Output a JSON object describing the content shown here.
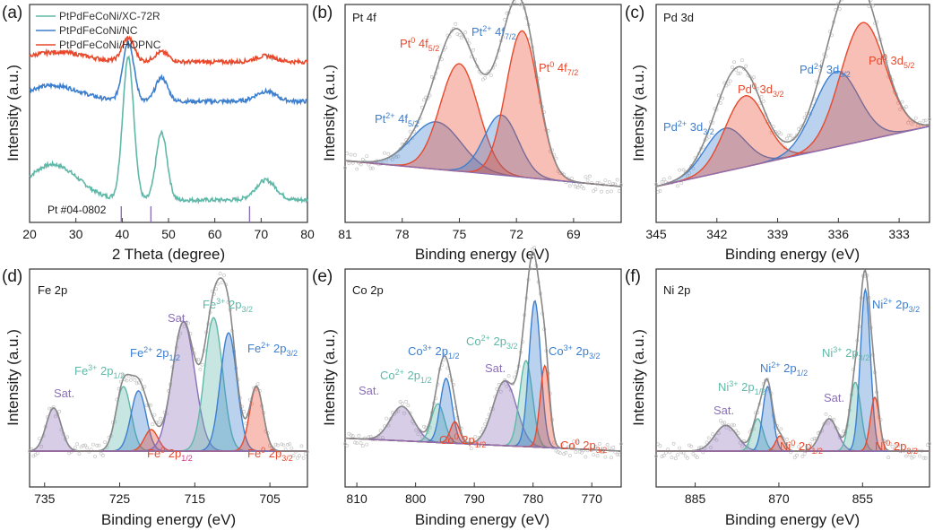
{
  "colors": {
    "red": "#e8492c",
    "blue": "#3d7fcf",
    "teal": "#5fb8a8",
    "purple": "#8b6fb8",
    "gray": "#777777",
    "dark_red": "#d3301a"
  },
  "chart_data": [
    {
      "panel": "(a)",
      "type": "line",
      "title": "",
      "xlabel": "2 Theta (degree)",
      "ylabel": "Intensity (a.u.)",
      "xlim": [
        20,
        80
      ],
      "xticks": [
        "20",
        "30",
        "40",
        "50",
        "60",
        "70",
        "80"
      ],
      "series": [
        {
          "name": "PtPdFeCoNi/XC-72R",
          "color": "#5fb8a8",
          "offset": 0.0,
          "peaks": [
            [
              25,
              0.18,
              5.5
            ],
            [
              41.3,
              0.72,
              1.2
            ],
            [
              48.5,
              0.34,
              1.2
            ],
            [
              71,
              0.1,
              2.2
            ]
          ]
        },
        {
          "name": "PtPdFeCoNi/NC",
          "color": "#3d7fcf",
          "offset": 0.5,
          "peaks": [
            [
              25,
              0.08,
              6
            ],
            [
              41.3,
              0.3,
              1.2
            ],
            [
              48.5,
              0.12,
              1.3
            ],
            [
              71,
              0.05,
              2.2
            ]
          ]
        },
        {
          "name": "PtPdFeCoNi/HOPNC",
          "color": "#e8492c",
          "offset": 0.7,
          "peaks": [
            [
              26,
              0.05,
              6
            ],
            [
              41.3,
              0.12,
              1.3
            ],
            [
              48.5,
              0.05,
              1.5
            ],
            [
              71,
              0.03,
              2.2
            ]
          ]
        }
      ],
      "reference": {
        "label": "Pt #04-0802",
        "positions": [
          39.8,
          46.2,
          67.5
        ]
      }
    },
    {
      "panel": "(b)",
      "type": "line",
      "title": "Pt 4f",
      "xlabel": "Binding energy (eV)",
      "ylabel": "Intensity (a.u.)",
      "xlim": [
        81,
        66.5
      ],
      "xticks": [
        "81",
        "78",
        "75",
        "72",
        "69"
      ],
      "baseline": [
        0.12,
        0.0
      ],
      "peaks": [
        {
          "center": 76.2,
          "height": 0.22,
          "width": 1.3,
          "color": "#3d7fcf",
          "label": "Pt²⁺ 4f₅/₂"
        },
        {
          "center": 75.0,
          "height": 0.5,
          "width": 1.0,
          "color": "#e8492c",
          "label": "Pt⁰ 4f₅/₂"
        },
        {
          "center": 72.8,
          "height": 0.28,
          "width": 0.9,
          "color": "#3d7fcf",
          "label": "Pt²⁺ 4f₇/₂"
        },
        {
          "center": 71.7,
          "height": 0.68,
          "width": 0.85,
          "color": "#e8492c",
          "label": "Pt⁰ 4f₇/₂"
        }
      ],
      "labels": {
        "pt0_52": {
          "main": "Pt",
          "sup": "0",
          "rest": " 4f",
          "sub": "5/2"
        },
        "pt2_72": {
          "main": "Pt",
          "sup": "2+",
          "rest": " 4f",
          "sub": "7/2"
        },
        "pt0_72": {
          "main": "Pt",
          "sup": "0",
          "rest": " 4f",
          "sub": "7/2"
        },
        "pt2_52": {
          "main": "Pt",
          "sup": "2+",
          "rest": " 4f",
          "sub": "5/2"
        }
      }
    },
    {
      "panel": "(c)",
      "type": "line",
      "title": "Pd 3d",
      "xlabel": "Binding energy (eV)",
      "ylabel": "Intensity (a.u.)",
      "xlim": [
        345,
        331.5
      ],
      "xticks": [
        "345",
        "342",
        "339",
        "336",
        "333"
      ],
      "baseline": [
        0.0,
        0.28
      ],
      "peaks": [
        {
          "center": 341.6,
          "height": 0.2,
          "width": 1.0,
          "color": "#3d7fcf",
          "label": "Pd²⁺ 3d₃/₂"
        },
        {
          "center": 340.6,
          "height": 0.33,
          "width": 1.0,
          "color": "#e8492c",
          "label": "Pd⁰ 3d₃/₂"
        },
        {
          "center": 336.1,
          "height": 0.35,
          "width": 1.1,
          "color": "#3d7fcf",
          "label": "Pd²⁺ 3d₅/₂"
        },
        {
          "center": 334.8,
          "height": 0.55,
          "width": 1.1,
          "color": "#e8492c",
          "label": "Pd⁰ 3d₅/₂"
        }
      ],
      "labels": {
        "pd0_32": {
          "main": "Pd",
          "sup": "0",
          "rest": " 3d",
          "sub": "3/2"
        },
        "pd2_52": {
          "main": "Pd",
          "sup": "2+",
          "rest": " 3d",
          "sub": "5/2"
        },
        "pd0_52": {
          "main": "Pd",
          "sup": "0",
          "rest": " 3d",
          "sub": "5/2"
        },
        "pd2_32": {
          "main": "Pd",
          "sup": "2+",
          "rest": " 3d",
          "sub": "3/2"
        }
      }
    },
    {
      "panel": "(d)",
      "type": "line",
      "title": "Fe 2p",
      "xlabel": "Binding energy (eV)",
      "ylabel": "Intensity (a.u.)",
      "xlim": [
        737,
        700
      ],
      "xticks": [
        "735",
        "725",
        "715",
        "705"
      ],
      "baseline": [
        0.0,
        0.0
      ],
      "peaks": [
        {
          "center": 733.8,
          "height": 0.2,
          "width": 1.0,
          "color": "#8b6fb8",
          "label": "Sat."
        },
        {
          "center": 724.5,
          "height": 0.3,
          "width": 1.0,
          "color": "#5fb8a8",
          "label": "Fe³⁺ 2p₁/₂"
        },
        {
          "center": 722.5,
          "height": 0.28,
          "width": 1.0,
          "color": "#3d7fcf",
          "label": "Fe²⁺ 2p₁/₂"
        },
        {
          "center": 720.8,
          "height": 0.1,
          "width": 0.9,
          "color": "#e8492c",
          "label": "Fe⁰ 2p₁/₂"
        },
        {
          "center": 716.5,
          "height": 0.6,
          "width": 1.5,
          "color": "#8b6fb8",
          "label": "Sat."
        },
        {
          "center": 712.5,
          "height": 0.62,
          "width": 1.2,
          "color": "#5fb8a8",
          "label": "Fe³⁺ 2p₃/₂"
        },
        {
          "center": 710.5,
          "height": 0.55,
          "width": 1.1,
          "color": "#3d7fcf",
          "label": "Fe²⁺ 2p₃/₂"
        },
        {
          "center": 706.8,
          "height": 0.3,
          "width": 0.9,
          "color": "#e8492c",
          "label": "Fe⁰ 2p₃/₂"
        }
      ],
      "labels": {
        "sat_left": "Sat.",
        "sat_mid": "Sat.",
        "fe3_12": {
          "main": "Fe",
          "sup": "3+",
          "rest": " 2p",
          "sub": "1/2"
        },
        "fe2_12": {
          "main": "Fe",
          "sup": "2+",
          "rest": " 2p",
          "sub": "1/2"
        },
        "fe3_32": {
          "main": "Fe",
          "sup": "3+",
          "rest": " 2p",
          "sub": "3/2"
        },
        "fe2_32": {
          "main": "Fe",
          "sup": "2+",
          "rest": " 2p",
          "sub": "3/2"
        },
        "fe0_12": {
          "main": "Fe",
          "sup": "0",
          "rest": " 2p",
          "sub": "1/2"
        },
        "fe0_32": {
          "main": "Fe",
          "sup": "0",
          "rest": " 2p",
          "sub": "3/2"
        }
      }
    },
    {
      "panel": "(e)",
      "type": "line",
      "title": "Co 2p",
      "xlabel": "Binding energy (eV)",
      "ylabel": "Intensity (a.u.)",
      "xlim": [
        812,
        765
      ],
      "xticks": [
        "810",
        "800",
        "790",
        "780",
        "770"
      ],
      "baseline": [
        0.06,
        0.0
      ],
      "peaks": [
        {
          "center": 802.3,
          "height": 0.16,
          "width": 2.0,
          "color": "#8b6fb8",
          "label": "Sat."
        },
        {
          "center": 796.2,
          "height": 0.18,
          "width": 1.1,
          "color": "#5fb8a8",
          "label": "Co²⁺ 2p₁/₂"
        },
        {
          "center": 794.8,
          "height": 0.3,
          "width": 1.0,
          "color": "#3d7fcf",
          "label": "Co³⁺ 2p₁/₂"
        },
        {
          "center": 793.3,
          "height": 0.1,
          "width": 0.8,
          "color": "#e8492c",
          "label": "Co⁰ 2p₁/₂"
        },
        {
          "center": 784.8,
          "height": 0.3,
          "width": 2.0,
          "color": "#8b6fb8",
          "label": "Sat."
        },
        {
          "center": 781.2,
          "height": 0.4,
          "width": 1.1,
          "color": "#5fb8a8",
          "label": "Co²⁺ 2p₃/₂"
        },
        {
          "center": 779.7,
          "height": 0.68,
          "width": 1.0,
          "color": "#3d7fcf",
          "label": "Co³⁺ 2p₃/₂"
        },
        {
          "center": 778.0,
          "height": 0.38,
          "width": 0.8,
          "color": "#e8492c",
          "label": "Co⁰ 2p₃/₂"
        }
      ],
      "labels": {
        "sat_left": "Sat.",
        "sat_mid": "Sat.",
        "co3_12": {
          "main": "Co",
          "sup": "3+",
          "rest": " 2p",
          "sub": "1/2"
        },
        "co2_12": {
          "main": "Co",
          "sup": "2+",
          "rest": " 2p",
          "sub": "1/2"
        },
        "co2_32": {
          "main": "Co",
          "sup": "2+",
          "rest": " 2p",
          "sub": "3/2"
        },
        "co3_32": {
          "main": "Co",
          "sup": "3+",
          "rest": " 2p",
          "sub": "3/2"
        },
        "co0_12": {
          "main": "Co",
          "sup": "0",
          "rest": " 2p",
          "sub": "1/2"
        },
        "co0_32": {
          "main": "Co",
          "sup": "0",
          "rest": " 2p",
          "sub": "3/2"
        }
      }
    },
    {
      "panel": "(f)",
      "type": "line",
      "title": "Ni 2p",
      "xlabel": "Binding energy (eV)",
      "ylabel": "Intensity (a.u.)",
      "xlim": [
        892,
        843
      ],
      "xticks": [
        "885",
        "870",
        "855"
      ],
      "baseline": [
        0.0,
        0.0
      ],
      "peaks": [
        {
          "center": 879.5,
          "height": 0.12,
          "width": 2.0,
          "color": "#8b6fb8",
          "label": "Sat."
        },
        {
          "center": 873.8,
          "height": 0.15,
          "width": 1.0,
          "color": "#5fb8a8",
          "label": "Ni³⁺ 2p₁/₂"
        },
        {
          "center": 872.0,
          "height": 0.3,
          "width": 0.9,
          "color": "#3d7fcf",
          "label": "Ni²⁺ 2p₁/₂"
        },
        {
          "center": 869.8,
          "height": 0.07,
          "width": 0.8,
          "color": "#e8492c",
          "label": "Ni⁰ 2p₁/₂"
        },
        {
          "center": 861.0,
          "height": 0.15,
          "width": 1.5,
          "color": "#8b6fb8",
          "label": "Sat."
        },
        {
          "center": 856.3,
          "height": 0.32,
          "width": 1.0,
          "color": "#5fb8a8",
          "label": "Ni³⁺ 2p₃/₂"
        },
        {
          "center": 854.5,
          "height": 0.75,
          "width": 0.9,
          "color": "#3d7fcf",
          "label": "Ni²⁺ 2p₃/₂"
        },
        {
          "center": 852.8,
          "height": 0.25,
          "width": 0.8,
          "color": "#e8492c",
          "label": "Ni⁰ 2p₃/₂"
        }
      ],
      "labels": {
        "sat_left": "Sat.",
        "sat_mid": "Sat.",
        "ni3_12": {
          "main": "Ni",
          "sup": "3+",
          "rest": " 2p",
          "sub": "1/2"
        },
        "ni2_12": {
          "main": "Ni",
          "sup": "2+",
          "rest": " 2p",
          "sub": "1/2"
        },
        "ni3_32": {
          "main": "Ni",
          "sup": "3+",
          "rest": " 2p",
          "sub": "3/2"
        },
        "ni2_32": {
          "main": "Ni",
          "sup": "2+",
          "rest": " 2p",
          "sub": "3/2"
        },
        "ni0_12": {
          "main": "Ni",
          "sup": "0",
          "rest": " 2p",
          "sub": "1/2"
        },
        "ni0_32": {
          "main": "Ni",
          "sup": "0",
          "rest": " 2p",
          "sub": "3/2"
        }
      }
    }
  ]
}
